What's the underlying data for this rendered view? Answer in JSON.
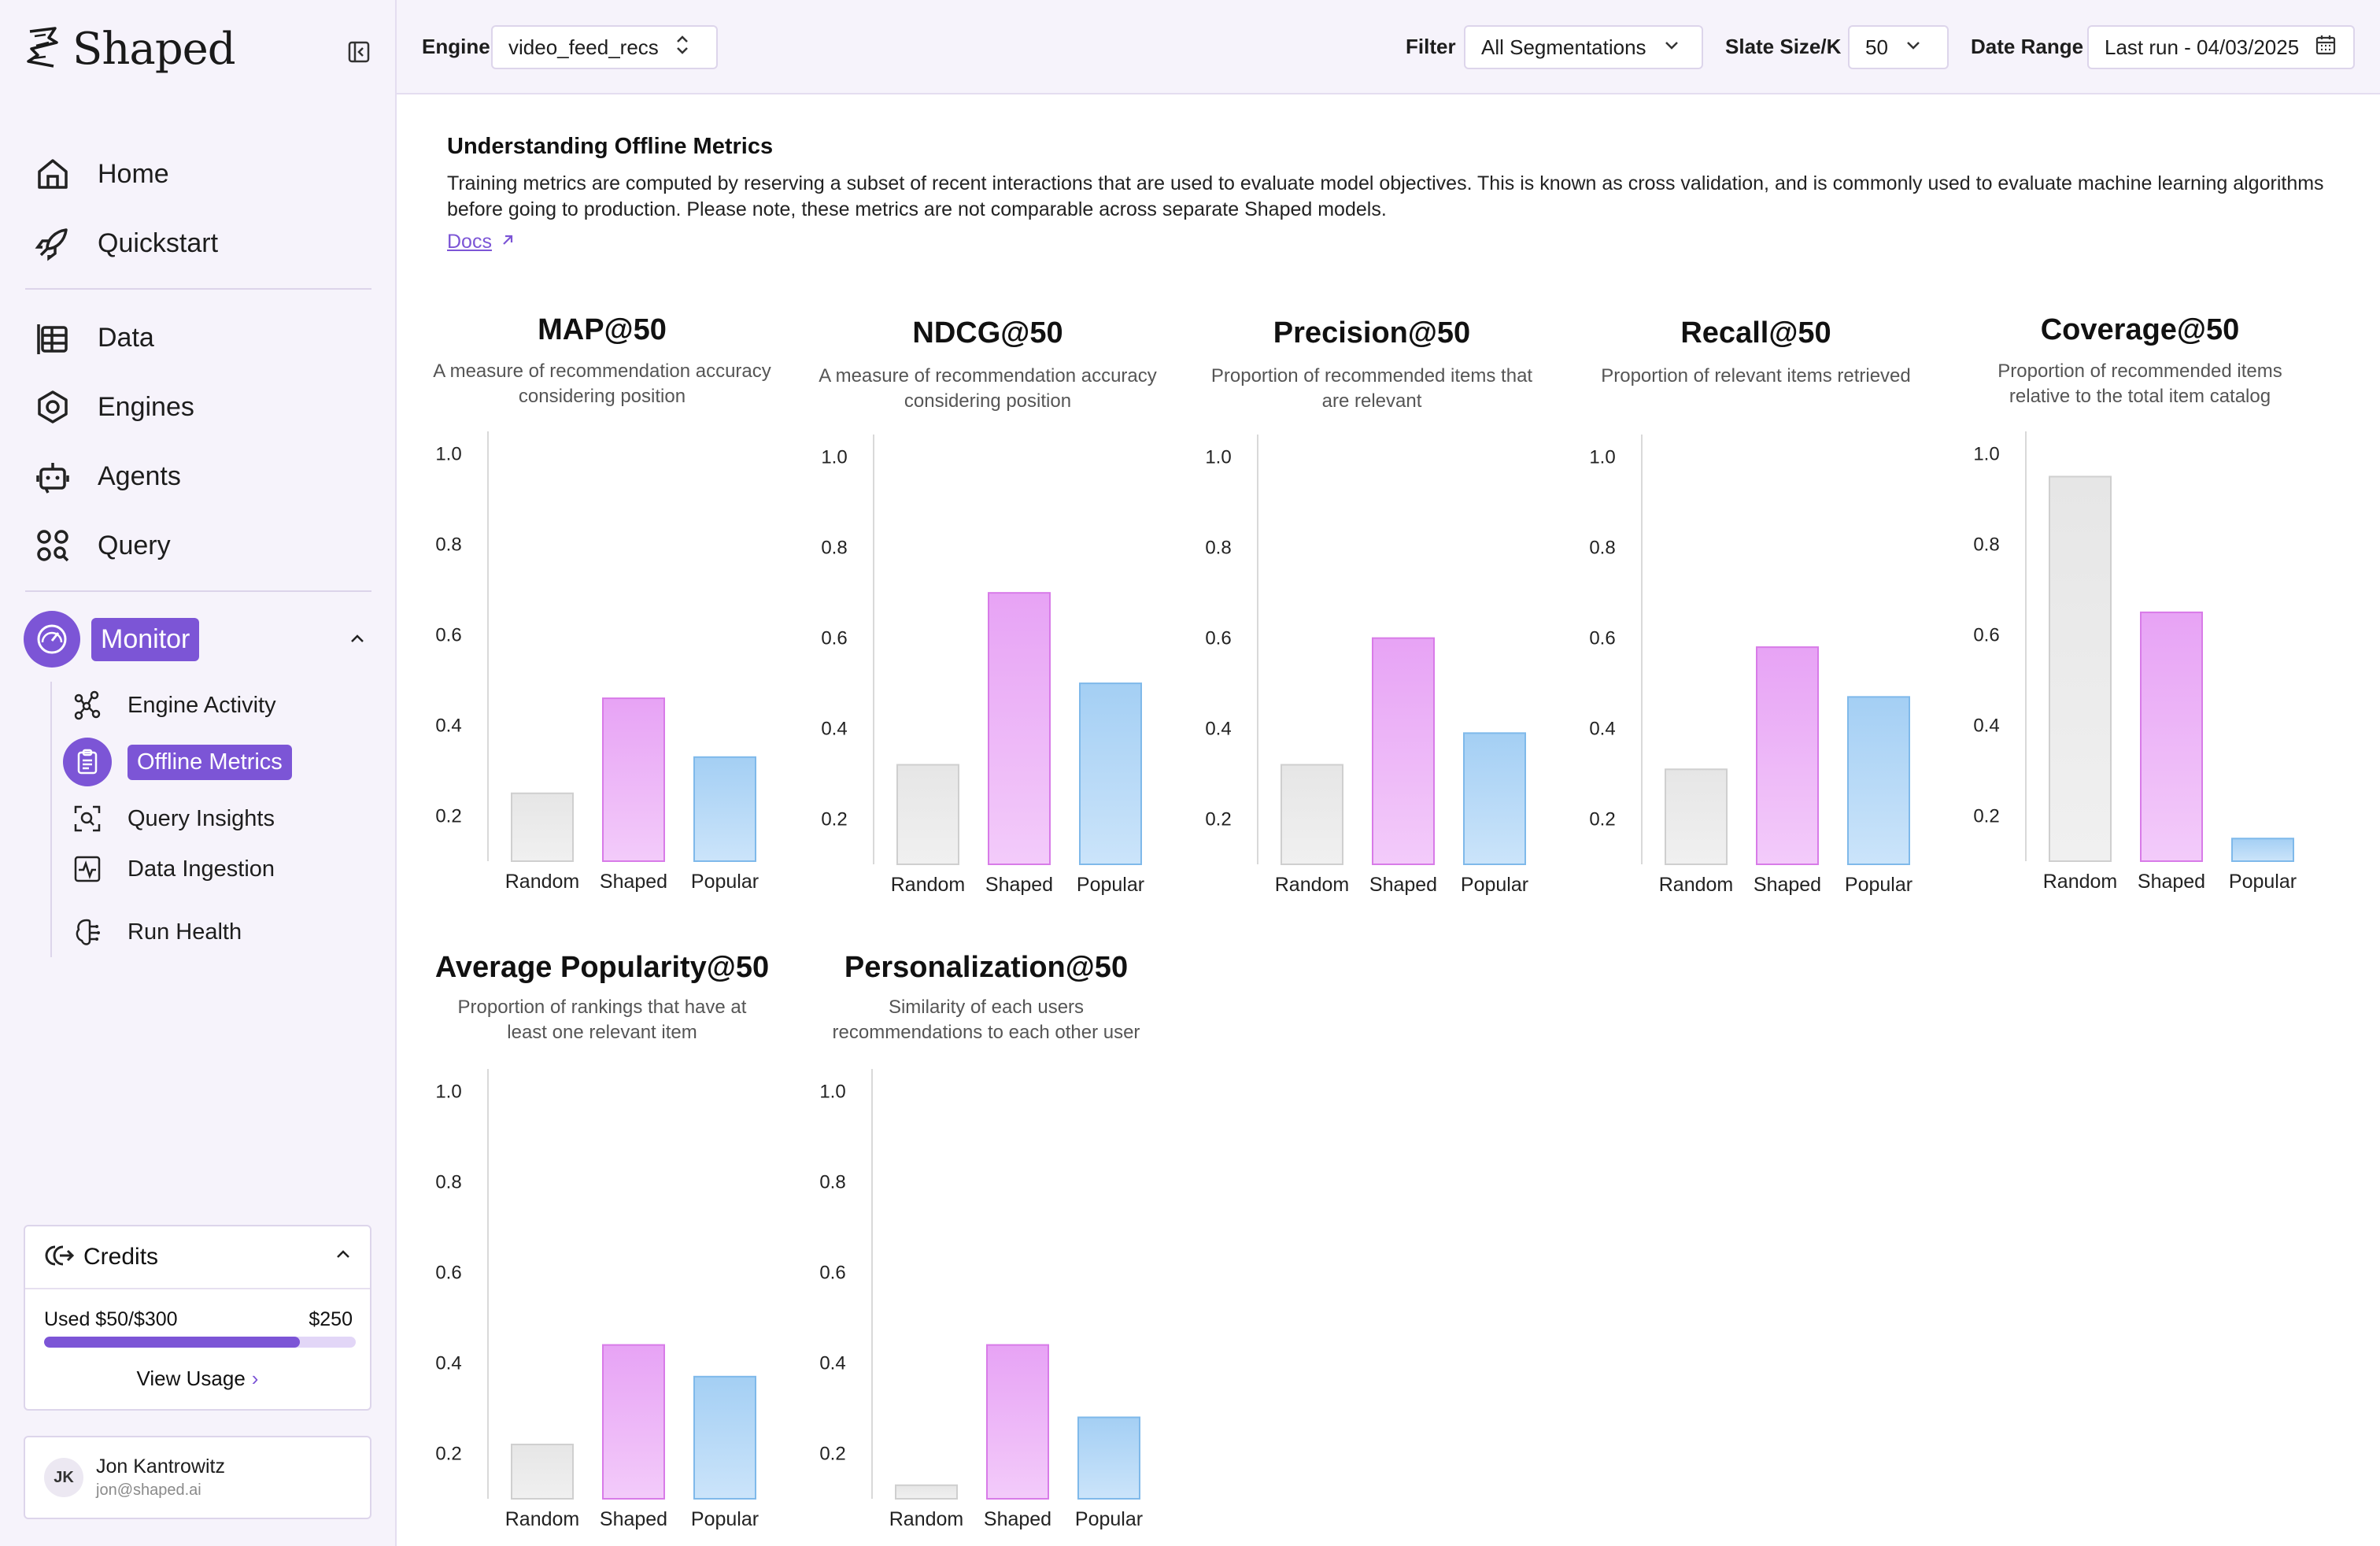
{
  "brand": {
    "name": "Shaped"
  },
  "colors": {
    "accent": "#7c55d6",
    "random_bar": "#e4e4e4",
    "shaped_bar": "#e9a6f5",
    "popular_bar": "#a9d2f4"
  },
  "sidebar": {
    "nav": [
      {
        "label": "Home",
        "icon": "home-icon"
      },
      {
        "label": "Quickstart",
        "icon": "rocket-icon"
      },
      {
        "label": "Data",
        "icon": "table-icon"
      },
      {
        "label": "Engines",
        "icon": "hexagon-icon"
      },
      {
        "label": "Agents",
        "icon": "robot-icon"
      },
      {
        "label": "Query",
        "icon": "query-icon"
      }
    ],
    "monitor": {
      "label": "Monitor",
      "items": [
        {
          "label": "Engine Activity",
          "icon": "nodes-icon"
        },
        {
          "label": "Offline Metrics",
          "icon": "clipboard-icon",
          "active": true
        },
        {
          "label": "Query Insights",
          "icon": "scan-search-icon"
        },
        {
          "label": "Data Ingestion",
          "icon": "activity-icon"
        },
        {
          "label": "Run Health",
          "icon": "brain-icon"
        }
      ]
    },
    "credits": {
      "title": "Credits",
      "used_label": "Used $50/$300",
      "max_label": "$250",
      "progress_fraction": 0.82,
      "view_usage": "View Usage"
    },
    "user": {
      "initials": "JK",
      "name": "Jon Kantrowitz",
      "email": "jon@shaped.ai"
    }
  },
  "topbar": {
    "engine_label": "Engine",
    "engine_value": "video_feed_recs",
    "filter_label": "Filter",
    "filter_value": "All Segmentations",
    "slate_label": "Slate Size/K",
    "slate_value": "50",
    "date_label": "Date Range",
    "date_value": "Last run - 04/03/2025"
  },
  "intro": {
    "title": "Understanding Offline Metrics",
    "text": "Training metrics are computed by reserving a subset of recent interactions that are used to evaluate model objectives. This is known as cross validation, and is commonly used to evaluate machine learning algorithms before going to production. Please note, these metrics are not comparable across separate Shaped models.",
    "docs_label": "Docs"
  },
  "chart_data": [
    {
      "type": "bar",
      "title": "MAP@50",
      "description": "A measure of recommendation accuracy considering position",
      "categories": [
        "Random",
        "Shaped",
        "Popular"
      ],
      "values": [
        0.25,
        0.46,
        0.33
      ],
      "yticks": [
        "1.0",
        "0.8",
        "0.6",
        "0.4",
        "0.2"
      ],
      "ylim": [
        0.1,
        1.05
      ]
    },
    {
      "type": "bar",
      "title": "NDCG@50",
      "description": "A measure of recommendation accuracy considering position",
      "categories": [
        "Random",
        "Shaped",
        "Popular"
      ],
      "values": [
        0.32,
        0.7,
        0.5
      ],
      "yticks": [
        "1.0",
        "0.8",
        "0.6",
        "0.4",
        "0.2"
      ],
      "ylim": [
        0.1,
        1.05
      ]
    },
    {
      "type": "bar",
      "title": "Precision@50",
      "description": "Proportion of recommended items that are relevant",
      "categories": [
        "Random",
        "Shaped",
        "Popular"
      ],
      "values": [
        0.32,
        0.6,
        0.39
      ],
      "yticks": [
        "1.0",
        "0.8",
        "0.6",
        "0.4",
        "0.2"
      ],
      "ylim": [
        0.1,
        1.05
      ]
    },
    {
      "type": "bar",
      "title": "Recall@50",
      "description": "Proportion of relevant items retrieved",
      "categories": [
        "Random",
        "Shaped",
        "Popular"
      ],
      "values": [
        0.31,
        0.58,
        0.47
      ],
      "yticks": [
        "1.0",
        "0.8",
        "0.6",
        "0.4",
        "0.2"
      ],
      "ylim": [
        0.1,
        1.05
      ]
    },
    {
      "type": "bar",
      "title": "Coverage@50",
      "description": "Proportion of recommended items relative to the total item catalog",
      "categories": [
        "Random",
        "Shaped",
        "Popular"
      ],
      "values": [
        0.95,
        0.65,
        0.15
      ],
      "yticks": [
        "1.0",
        "0.8",
        "0.6",
        "0.4",
        "0.2"
      ],
      "ylim": [
        0.1,
        1.05
      ]
    },
    {
      "type": "bar",
      "title": "Average Popularity@50",
      "description": "Proportion of rankings that have at least one relevant item",
      "categories": [
        "Random",
        "Shaped",
        "Popular"
      ],
      "values": [
        0.22,
        0.44,
        0.37
      ],
      "yticks": [
        "1.0",
        "0.8",
        "0.6",
        "0.4",
        "0.2"
      ],
      "ylim": [
        0.1,
        1.05
      ]
    },
    {
      "type": "bar",
      "title": "Personalization@50",
      "description": "Similarity of each users recommendations to each other user",
      "categories": [
        "Random",
        "Shaped",
        "Popular"
      ],
      "values": [
        0.13,
        0.44,
        0.28
      ],
      "yticks": [
        "1.0",
        "0.8",
        "0.6",
        "0.4",
        "0.2"
      ],
      "ylim": [
        0.1,
        1.05
      ]
    }
  ]
}
